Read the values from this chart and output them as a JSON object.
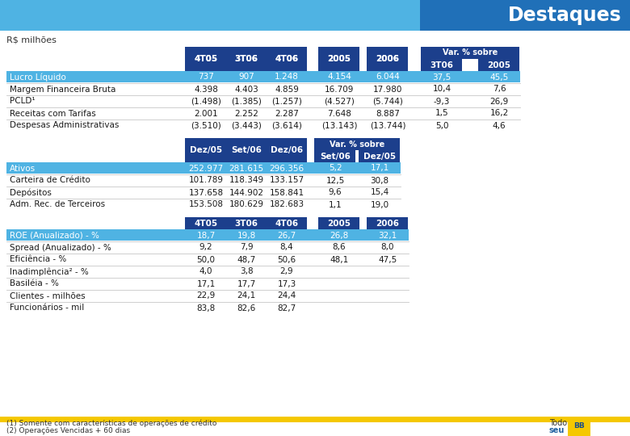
{
  "title": "Destaques",
  "subtitle": "R$ milhões",
  "header_bg_light": "#5ab5e0",
  "header_bg_dark": "#1a5fa8",
  "col_header_bg": "#1a3d82",
  "highlight_row_bg": "#5ab5e0",
  "footnote1": "(1) Somente com características de operações de crédito",
  "footnote2": "(2) Operações Vencidas + 60 dias",
  "footer_logo_text1": "Todo",
  "footer_logo_text2": "seu",
  "yellow_bar_color": "#f5c800",
  "section1": {
    "col_headers": [
      "4T05",
      "3T06",
      "4T06",
      "2005",
      "2006"
    ],
    "var_header": "Var. % sobre",
    "var_sub_headers": [
      "3T06",
      "2005"
    ],
    "rows": [
      [
        "Lucro Líquido",
        "737",
        "907",
        "1.248",
        "4.154",
        "6.044",
        "37,5",
        "45,5"
      ],
      [
        "Margem Financeira Bruta",
        "4.398",
        "4.403",
        "4.859",
        "16.709",
        "17.980",
        "10,4",
        "7,6"
      ],
      [
        "PCLD¹",
        "(1.498)",
        "(1.385)",
        "(1.257)",
        "(4.527)",
        "(5.744)",
        "-9,3",
        "26,9"
      ],
      [
        "Receitas com Tarifas",
        "2.001",
        "2.252",
        "2.287",
        "7.648",
        "8.887",
        "1,5",
        "16,2"
      ],
      [
        "Despesas Administrativas",
        "(3.510)",
        "(3.443)",
        "(3.614)",
        "(13.143)",
        "(13.744)",
        "5,0",
        "4,6"
      ]
    ]
  },
  "section2": {
    "col_headers": [
      "Dez/05",
      "Set/06",
      "Dez/06"
    ],
    "var_header": "Var. % sobre",
    "var_sub_headers": [
      "Set/06",
      "Dez/05"
    ],
    "rows": [
      [
        "Ativos",
        "252.977",
        "281.615",
        "296.356",
        "5,2",
        "17,1"
      ],
      [
        "Carteira de Crédito",
        "101.789",
        "118.349",
        "133.157",
        "12,5",
        "30,8"
      ],
      [
        "Depósitos",
        "137.658",
        "144.902",
        "158.841",
        "9,6",
        "15,4"
      ],
      [
        "Adm. Rec. de Terceiros",
        "153.508",
        "180.629",
        "182.683",
        "1,1",
        "19,0"
      ]
    ]
  },
  "section3": {
    "col_headers": [
      "4T05",
      "3T06",
      "4T06",
      "2005",
      "2006"
    ],
    "rows": [
      [
        "ROE (Anualizado) - %",
        "18,7",
        "19,8",
        "26,7",
        "26,8",
        "32,1"
      ],
      [
        "Spread (Anualizado) - %",
        "9,2",
        "7,9",
        "8,4",
        "8,6",
        "8,0"
      ],
      [
        "Eficiência - %",
        "50,0",
        "48,7",
        "50,6",
        "48,1",
        "47,5"
      ],
      [
        "Inadimplência² - %",
        "4,0",
        "3,8",
        "2,9",
        "",
        ""
      ],
      [
        "Basiléia - %",
        "17,1",
        "17,7",
        "17,3",
        "",
        ""
      ],
      [
        "Clientes - milhões",
        "22,9",
        "24,1",
        "24,4",
        "",
        ""
      ],
      [
        "Funcionários - mil",
        "83,8",
        "82,6",
        "82,7",
        "",
        ""
      ]
    ]
  }
}
